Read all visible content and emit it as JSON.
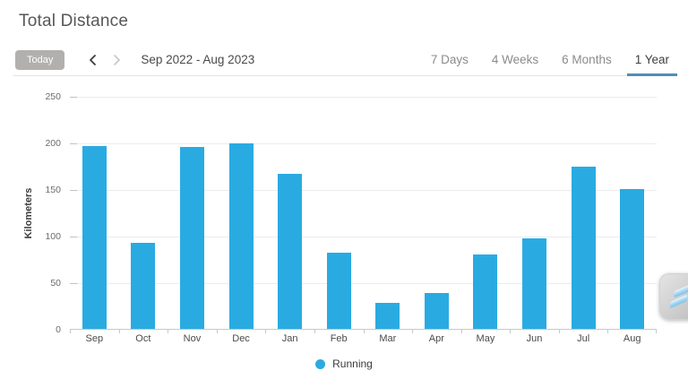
{
  "page": {
    "title": "Total Distance"
  },
  "toolbar": {
    "today_label": "Today",
    "date_range": "Sep 2022 - Aug 2023",
    "tabs": [
      {
        "label": "7 Days",
        "active": false
      },
      {
        "label": "4 Weeks",
        "active": false
      },
      {
        "label": "6 Months",
        "active": false
      },
      {
        "label": "1 Year",
        "active": true
      }
    ]
  },
  "chart_data": {
    "type": "bar",
    "title": "Total Distance",
    "categories": [
      "Sep",
      "Oct",
      "Nov",
      "Dec",
      "Jan",
      "Feb",
      "Mar",
      "Apr",
      "May",
      "Jun",
      "Jul",
      "Aug"
    ],
    "series": [
      {
        "name": "Running",
        "values": [
          196,
          92,
          195,
          199,
          166,
          82,
          28,
          38,
          80,
          97,
          174,
          150
        ]
      }
    ],
    "xlabel": "",
    "ylabel": "Kilometers",
    "yticks": [
      0,
      50,
      100,
      150,
      200,
      250
    ],
    "ylim": [
      0,
      250
    ],
    "grid": true,
    "legend_position": "bottom",
    "bar_color": "#29abe2"
  },
  "legend": {
    "items": [
      {
        "label": "Running",
        "color": "#29abe2"
      }
    ]
  },
  "colors": {
    "bar": "#29abe2",
    "active_tab_underline": "#4f8fb3",
    "today_button_bg": "#b2b0ad",
    "gridline": "#ececec",
    "axis": "#c8c8c8"
  },
  "icons": {
    "prev": "chevron-left-icon",
    "next": "chevron-right-icon",
    "legend_dot": "circle-icon",
    "floating_widget": "s-icon"
  }
}
